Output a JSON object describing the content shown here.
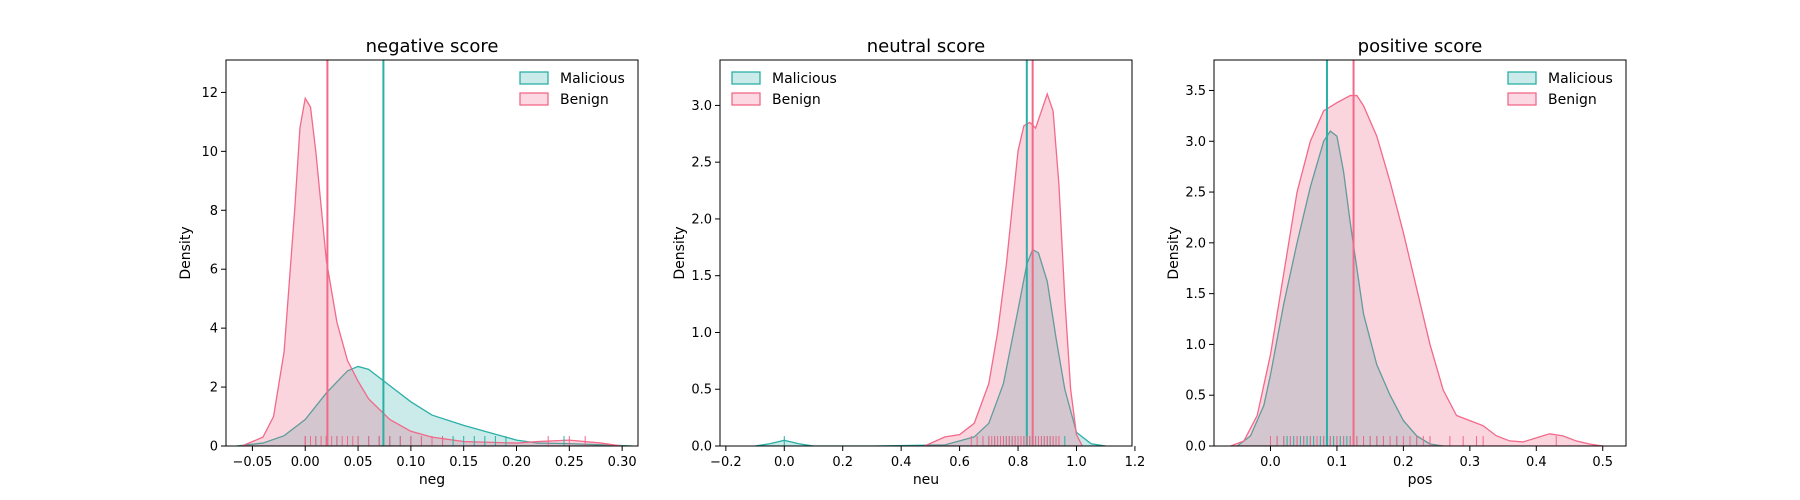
{
  "colors": {
    "malicious": "#2ab0a6",
    "benign": "#f2698a"
  },
  "chart_data": [
    {
      "type": "area",
      "title": "negative score",
      "xlabel": "neg",
      "ylabel": "Density",
      "xlim": [
        -0.075,
        0.315
      ],
      "ylim": [
        0,
        13.1
      ],
      "xticks": [
        -0.05,
        0.0,
        0.05,
        0.1,
        0.15,
        0.2,
        0.25,
        0.3
      ],
      "xtick_labels": [
        "−0.05",
        "0.00",
        "0.05",
        "0.10",
        "0.15",
        "0.20",
        "0.25",
        "0.30"
      ],
      "yticks": [
        0,
        2,
        4,
        6,
        8,
        10,
        12
      ],
      "ytick_labels": [
        "0",
        "2",
        "4",
        "6",
        "8",
        "10",
        "12"
      ],
      "legend": "top-right",
      "series": [
        {
          "name": "Malicious",
          "color_key": "malicious",
          "mean": 0.074,
          "x": [
            -0.065,
            -0.04,
            -0.02,
            0.0,
            0.02,
            0.04,
            0.05,
            0.06,
            0.08,
            0.1,
            0.12,
            0.15,
            0.18,
            0.2,
            0.22,
            0.25,
            0.28,
            0.31
          ],
          "y": [
            0.0,
            0.1,
            0.35,
            0.9,
            1.8,
            2.55,
            2.7,
            2.6,
            2.05,
            1.5,
            1.05,
            0.7,
            0.4,
            0.2,
            0.1,
            0.08,
            0.04,
            0.0
          ],
          "rug": [
            0.0,
            0.01,
            0.02,
            0.02,
            0.03,
            0.03,
            0.04,
            0.04,
            0.05,
            0.05,
            0.05,
            0.06,
            0.06,
            0.07,
            0.07,
            0.08,
            0.08,
            0.09,
            0.09,
            0.1,
            0.1,
            0.11,
            0.12,
            0.13,
            0.14,
            0.15,
            0.16,
            0.17,
            0.18,
            0.19,
            0.245
          ]
        },
        {
          "name": "Benign",
          "color_key": "benign",
          "mean": 0.021,
          "x": [
            -0.06,
            -0.04,
            -0.03,
            -0.02,
            -0.01,
            -0.005,
            0.0,
            0.005,
            0.01,
            0.02,
            0.03,
            0.04,
            0.05,
            0.06,
            0.08,
            0.1,
            0.12,
            0.15,
            0.2,
            0.22,
            0.25,
            0.28,
            0.3
          ],
          "y": [
            0.0,
            0.3,
            1.0,
            3.2,
            8.0,
            10.8,
            11.8,
            11.5,
            10.0,
            6.3,
            4.2,
            2.9,
            2.2,
            1.6,
            0.9,
            0.5,
            0.3,
            0.15,
            0.1,
            0.15,
            0.2,
            0.1,
            0.0
          ],
          "rug": [
            0.0,
            0.0,
            0.005,
            0.01,
            0.015,
            0.02,
            0.02,
            0.025,
            0.03,
            0.035,
            0.04,
            0.045,
            0.05,
            0.06,
            0.07,
            0.08,
            0.09,
            0.1,
            0.11,
            0.12,
            0.13,
            0.23,
            0.25,
            0.265
          ]
        }
      ]
    },
    {
      "type": "area",
      "title": "neutral score",
      "xlabel": "neu",
      "ylabel": "Density",
      "xlim": [
        -0.22,
        1.19
      ],
      "ylim": [
        0,
        3.4
      ],
      "xticks": [
        -0.2,
        0.0,
        0.2,
        0.4,
        0.6,
        0.8,
        1.0,
        1.2
      ],
      "xtick_labels": [
        "−0.2",
        "0.0",
        "0.2",
        "0.4",
        "0.6",
        "0.8",
        "1.0",
        "1.2"
      ],
      "yticks": [
        0.0,
        0.5,
        1.0,
        1.5,
        2.0,
        2.5,
        3.0
      ],
      "ytick_labels": [
        "0.0",
        "0.5",
        "1.0",
        "1.5",
        "2.0",
        "2.5",
        "3.0"
      ],
      "legend": "top-left",
      "series": [
        {
          "name": "Malicious",
          "color_key": "malicious",
          "mean": 0.83,
          "x": [
            -0.1,
            -0.05,
            0.0,
            0.05,
            0.1,
            0.3,
            0.55,
            0.65,
            0.7,
            0.75,
            0.8,
            0.83,
            0.85,
            0.87,
            0.9,
            0.93,
            0.96,
            1.0,
            1.05,
            1.1
          ],
          "y": [
            0.0,
            0.02,
            0.05,
            0.02,
            0.0,
            0.0,
            0.01,
            0.08,
            0.2,
            0.55,
            1.2,
            1.6,
            1.73,
            1.7,
            1.45,
            0.95,
            0.5,
            0.12,
            0.02,
            0.0
          ],
          "rug": [
            0.0,
            0.68,
            0.7,
            0.72,
            0.74,
            0.75,
            0.76,
            0.77,
            0.78,
            0.79,
            0.8,
            0.81,
            0.82,
            0.83,
            0.84,
            0.85,
            0.86,
            0.87,
            0.88,
            0.89,
            0.9,
            0.91,
            0.92,
            0.93,
            0.94,
            0.96
          ]
        },
        {
          "name": "Benign",
          "color_key": "benign",
          "mean": 0.85,
          "x": [
            0.48,
            0.55,
            0.6,
            0.65,
            0.7,
            0.73,
            0.76,
            0.78,
            0.8,
            0.82,
            0.84,
            0.86,
            0.88,
            0.9,
            0.92,
            0.94,
            0.96,
            0.98,
            1.0,
            1.02
          ],
          "y": [
            0.0,
            0.08,
            0.1,
            0.2,
            0.55,
            1.0,
            1.6,
            2.1,
            2.6,
            2.82,
            2.85,
            2.8,
            2.95,
            3.1,
            2.95,
            2.3,
            1.3,
            0.5,
            0.1,
            0.0
          ],
          "rug": [
            0.64,
            0.66,
            0.68,
            0.7,
            0.71,
            0.72,
            0.73,
            0.74,
            0.75,
            0.76,
            0.77,
            0.78,
            0.79,
            0.8,
            0.81,
            0.82,
            0.83,
            0.84,
            0.85,
            0.86,
            0.87,
            0.88,
            0.89,
            0.9,
            0.91,
            0.92,
            0.93,
            0.94
          ]
        }
      ]
    },
    {
      "type": "area",
      "title": "positive score",
      "xlabel": "pos",
      "ylabel": "Density",
      "xlim": [
        -0.085,
        0.535
      ],
      "ylim": [
        0,
        3.8
      ],
      "xticks": [
        0.0,
        0.1,
        0.2,
        0.3,
        0.4,
        0.5
      ],
      "xtick_labels": [
        "0.0",
        "0.1",
        "0.2",
        "0.3",
        "0.4",
        "0.5"
      ],
      "yticks": [
        0.0,
        0.5,
        1.0,
        1.5,
        2.0,
        2.5,
        3.0,
        3.5
      ],
      "ytick_labels": [
        "0.0",
        "0.5",
        "1.0",
        "1.5",
        "2.0",
        "2.5",
        "3.0",
        "3.5"
      ],
      "legend": "top-right",
      "series": [
        {
          "name": "Malicious",
          "color_key": "malicious",
          "mean": 0.085,
          "x": [
            -0.05,
            -0.03,
            -0.01,
            0.0,
            0.02,
            0.04,
            0.06,
            0.08,
            0.09,
            0.1,
            0.11,
            0.12,
            0.14,
            0.16,
            0.18,
            0.2,
            0.22,
            0.24,
            0.26
          ],
          "y": [
            0.0,
            0.1,
            0.4,
            0.7,
            1.4,
            2.0,
            2.55,
            3.0,
            3.1,
            3.05,
            2.7,
            2.2,
            1.3,
            0.8,
            0.5,
            0.25,
            0.1,
            0.02,
            0.0
          ],
          "rug": [
            0.0,
            0.01,
            0.02,
            0.025,
            0.03,
            0.035,
            0.04,
            0.045,
            0.05,
            0.055,
            0.06,
            0.065,
            0.07,
            0.075,
            0.08,
            0.085,
            0.09,
            0.095,
            0.1,
            0.105,
            0.11,
            0.115,
            0.12,
            0.13,
            0.14,
            0.15,
            0.16,
            0.17,
            0.19,
            0.22
          ]
        },
        {
          "name": "Benign",
          "color_key": "benign",
          "mean": 0.125,
          "x": [
            -0.06,
            -0.04,
            -0.02,
            0.0,
            0.02,
            0.04,
            0.06,
            0.08,
            0.1,
            0.12,
            0.13,
            0.14,
            0.16,
            0.18,
            0.2,
            0.22,
            0.24,
            0.26,
            0.28,
            0.3,
            0.32,
            0.34,
            0.36,
            0.38,
            0.4,
            0.42,
            0.44,
            0.46,
            0.48,
            0.5
          ],
          "y": [
            0.0,
            0.05,
            0.3,
            0.9,
            1.7,
            2.5,
            3.0,
            3.3,
            3.38,
            3.45,
            3.45,
            3.35,
            3.05,
            2.6,
            2.1,
            1.55,
            1.0,
            0.55,
            0.3,
            0.25,
            0.2,
            0.1,
            0.05,
            0.04,
            0.08,
            0.12,
            0.1,
            0.05,
            0.02,
            0.0
          ],
          "rug": [
            0.0,
            0.01,
            0.02,
            0.03,
            0.04,
            0.05,
            0.06,
            0.07,
            0.08,
            0.09,
            0.1,
            0.11,
            0.12,
            0.13,
            0.14,
            0.15,
            0.16,
            0.17,
            0.18,
            0.19,
            0.2,
            0.21,
            0.22,
            0.23,
            0.24,
            0.27,
            0.29,
            0.31,
            0.32,
            0.43
          ]
        }
      ]
    }
  ]
}
